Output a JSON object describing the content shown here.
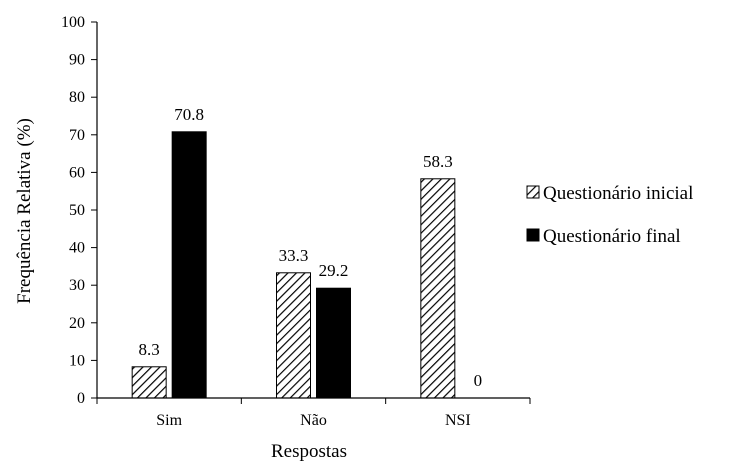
{
  "chart_data": {
    "type": "bar",
    "categories": [
      "Sim",
      "Não",
      "NSI"
    ],
    "series": [
      {
        "name": "Questionário inicial",
        "values": [
          8.3,
          33.3,
          58.3
        ],
        "pattern": "diagonal-hatch",
        "color": "#000000"
      },
      {
        "name": "Questionário final",
        "values": [
          70.8,
          29.2,
          0
        ],
        "pattern": "solid",
        "color": "#000000"
      }
    ],
    "data_labels": [
      [
        "8.3",
        "33.3",
        "58.3"
      ],
      [
        "70.8",
        "29.2",
        "0"
      ]
    ],
    "title": "",
    "xlabel": "Respostas",
    "ylabel": "Frequência Relativa (%)",
    "ylim": [
      0,
      100
    ],
    "yticks": [
      0,
      10,
      20,
      30,
      40,
      50,
      60,
      70,
      80,
      90,
      100
    ],
    "grid": false,
    "legend_position": "right"
  }
}
